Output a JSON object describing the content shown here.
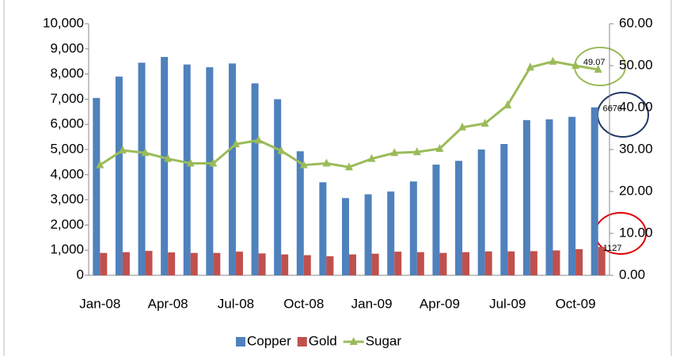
{
  "chart_data": {
    "type": "bar-line",
    "categories": [
      "Jan-08",
      null,
      null,
      "Apr-08",
      null,
      null,
      "Jul-08",
      null,
      null,
      "Oct-08",
      null,
      null,
      "Jan-09",
      null,
      null,
      "Apr-09",
      null,
      null,
      "Jul-09",
      null,
      null,
      "Oct-09",
      null
    ],
    "series": [
      {
        "name": "Copper",
        "type": "bar",
        "color": "#4f81bd",
        "values": [
          7050,
          7900,
          8450,
          8680,
          8380,
          8270,
          8420,
          7630,
          7000,
          4930,
          3700,
          3070,
          3220,
          3330,
          3730,
          4400,
          4550,
          5000,
          5220,
          6170,
          6200,
          6300,
          6676
        ]
      },
      {
        "name": "Gold",
        "type": "bar",
        "color": "#c0504d",
        "values": [
          890,
          920,
          970,
          910,
          890,
          890,
          940,
          870,
          830,
          800,
          760,
          830,
          860,
          940,
          920,
          890,
          920,
          950,
          950,
          960,
          990,
          1040,
          1127
        ]
      },
      {
        "name": "Sugar",
        "type": "line",
        "axis": "y2",
        "color": "#9bbb59",
        "values": [
          26.3,
          29.8,
          29.2,
          27.8,
          26.7,
          26.7,
          31.3,
          32.2,
          29.7,
          26.3,
          26.7,
          25.8,
          27.8,
          29.2,
          29.4,
          30.2,
          35.3,
          36.2,
          40.6,
          49.6,
          51.0,
          50.0,
          49.07
        ]
      }
    ],
    "ylim": [
      0,
      10000
    ],
    "yticks": [
      0,
      {
        "value": 1000,
        "label": "1,000"
      },
      {
        "value": 2000,
        "label": "2,000"
      },
      {
        "value": 3000,
        "label": "3,000"
      },
      {
        "value": 4000,
        "label": "4,000"
      },
      {
        "value": 5000,
        "label": "5,000"
      },
      {
        "value": 6000,
        "label": "6,000"
      },
      {
        "value": 7000,
        "label": "7,000"
      },
      {
        "value": 8000,
        "label": "8,000"
      },
      {
        "value": 9000,
        "label": "9,000"
      },
      {
        "value": 10000,
        "label": "10,000"
      }
    ],
    "y2lim": [
      0,
      60
    ],
    "y2ticks": [
      {
        "value": 0,
        "label": "0.00"
      },
      {
        "value": 10,
        "label": "10.00"
      },
      {
        "value": 20,
        "label": "20.00"
      },
      {
        "value": 30,
        "label": "30.00"
      },
      {
        "value": 40,
        "label": "40.00"
      },
      {
        "value": 50,
        "label": "50.00"
      },
      {
        "value": 60,
        "label": "60.00"
      }
    ],
    "legend": "bottom"
  }
}
